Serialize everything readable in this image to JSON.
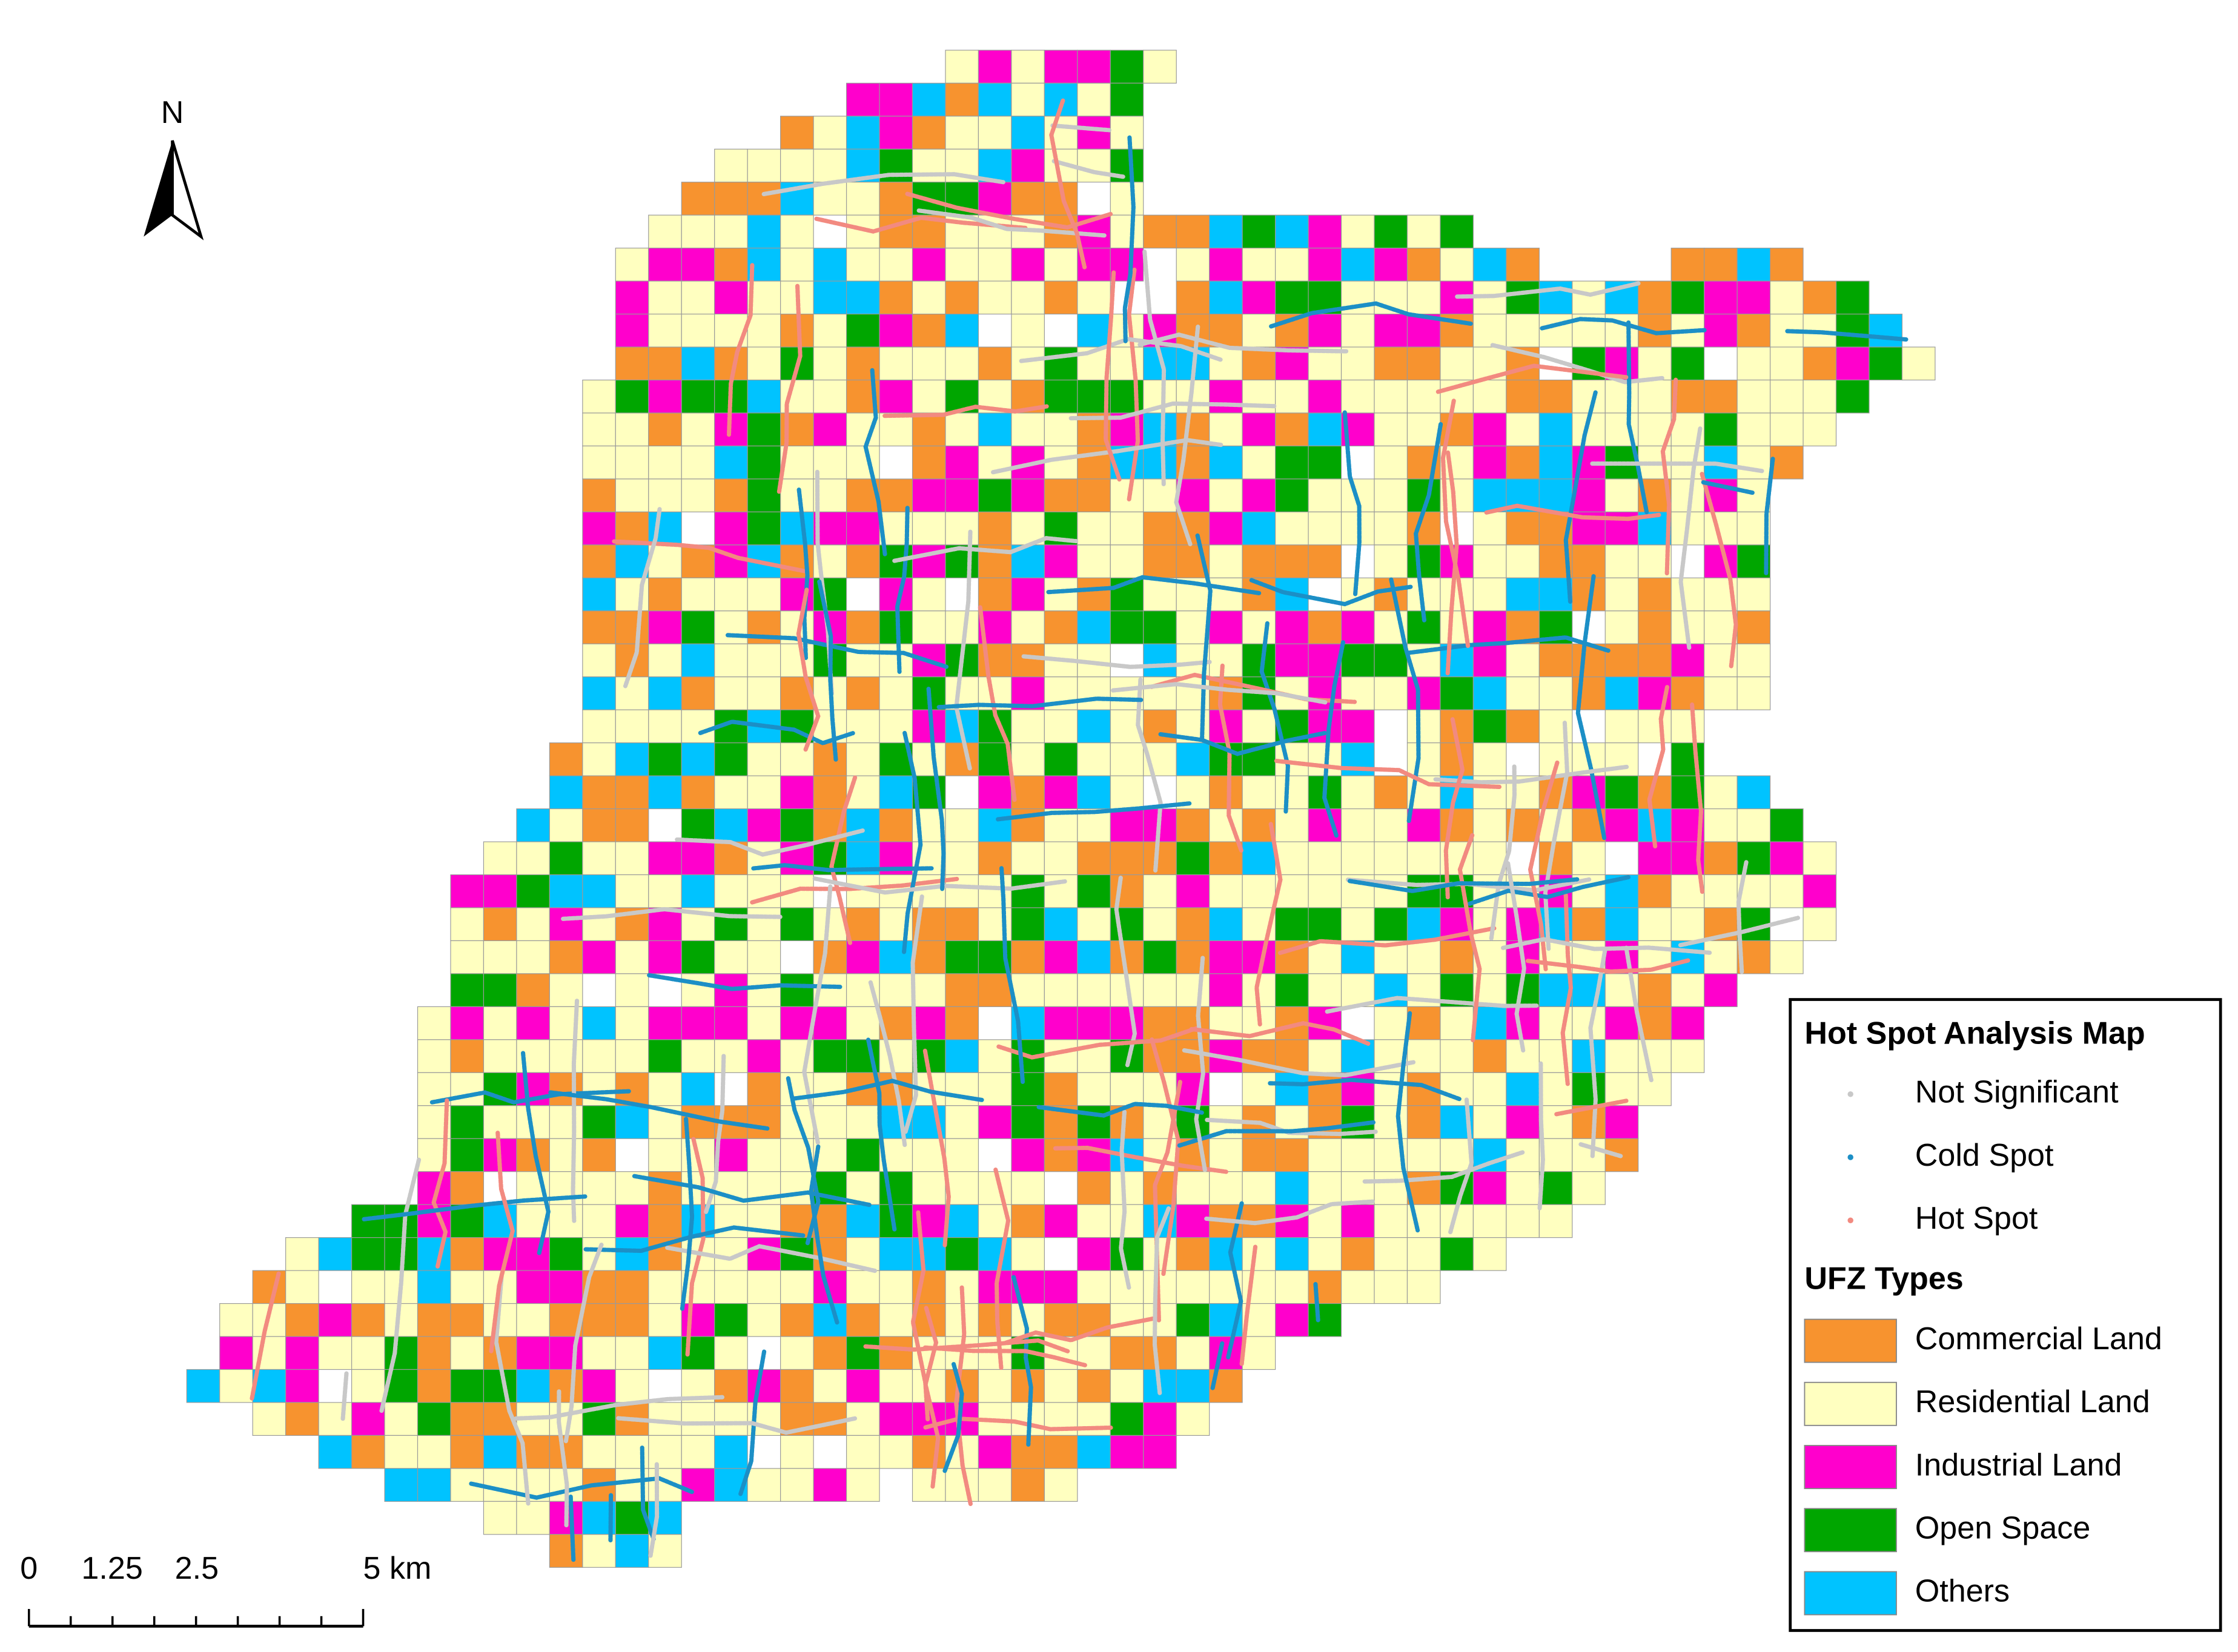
{
  "north_arrow": {
    "label": "N"
  },
  "scale_bar": {
    "labels": [
      "0",
      "1.25",
      "2.5",
      "5 km"
    ]
  },
  "legend": {
    "title": "Hot Spot Analysis Map",
    "hot_spot_items": [
      {
        "label": "Not Significant",
        "color": "#c8c8c8"
      },
      {
        "label": "Cold Spot",
        "color": "#1c8fc6"
      },
      {
        "label": "Hot Spot",
        "color": "#f28a80"
      }
    ],
    "ufz_title": "UFZ Types",
    "ufz_items": [
      {
        "label": "Commercial Land",
        "color": "#f7932f"
      },
      {
        "label": "Residential Land",
        "color": "#ffffc0"
      },
      {
        "label": "Industrial Land",
        "color": "#ff00cc"
      },
      {
        "label": "Open Space",
        "color": "#00a600"
      },
      {
        "label": "Others",
        "color": "#00c3ff"
      }
    ]
  }
}
